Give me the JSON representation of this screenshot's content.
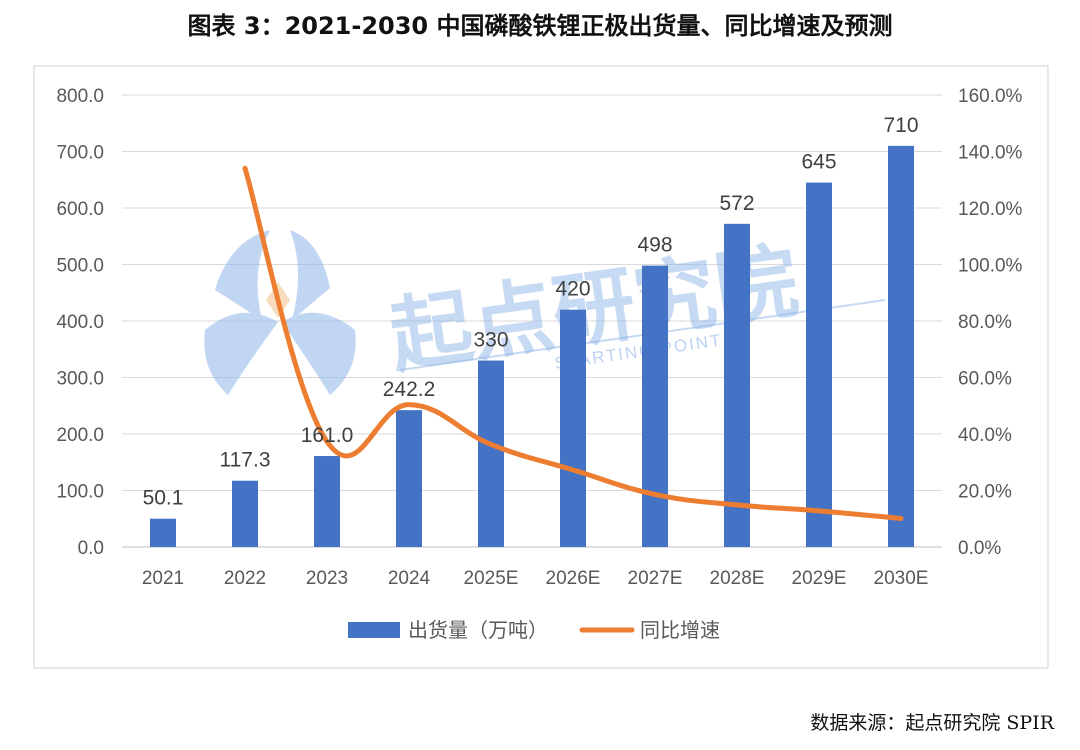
{
  "title": "图表 3：2021-2030 中国磷酸铁锂正极出货量、同比增速及预测",
  "source": "数据来源：起点研究院 SPIR",
  "watermark": {
    "text": "起点研究院",
    "subtext": "STARTING POINT",
    "color": "#8fb6e8"
  },
  "chart_data": {
    "type": "bar",
    "categories": [
      "2021",
      "2022",
      "2023",
      "2024",
      "2025E",
      "2026E",
      "2027E",
      "2028E",
      "2029E",
      "2030E"
    ],
    "series": [
      {
        "name": "出货量（万吨）",
        "type": "bar",
        "axis": "left",
        "color": "#4472c4",
        "values": [
          50.1,
          117.3,
          161.0,
          242.2,
          330,
          420,
          498,
          572,
          645,
          710
        ],
        "labels": [
          "50.1",
          "117.3",
          "161.0",
          "242.2",
          "330",
          "420",
          "498",
          "572",
          "645",
          "710"
        ]
      },
      {
        "name": "同比增速",
        "type": "line",
        "axis": "right",
        "color": "#ed7d31",
        "values": [
          null,
          134.1,
          37.3,
          50.4,
          36.3,
          27.3,
          18.6,
          14.9,
          12.8,
          10.1
        ]
      }
    ],
    "y_left": {
      "min": 0,
      "max": 800,
      "step": 100,
      "ticks": [
        "0.0",
        "100.0",
        "200.0",
        "300.0",
        "400.0",
        "500.0",
        "600.0",
        "700.0",
        "800.0"
      ]
    },
    "y_right": {
      "min": 0,
      "max": 160,
      "step": 20,
      "ticks": [
        "0.0%",
        "20.0%",
        "40.0%",
        "60.0%",
        "80.0%",
        "100.0%",
        "120.0%",
        "140.0%",
        "160.0%"
      ]
    },
    "grid": true,
    "legend": "bottom"
  }
}
